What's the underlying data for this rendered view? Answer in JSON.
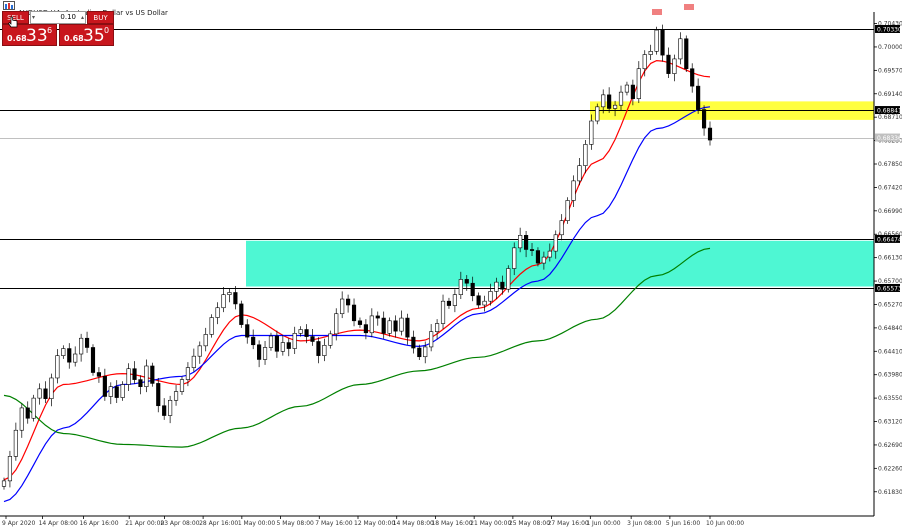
{
  "window": {
    "title": "AUDUSD,H4: Australian Dollar vs US Dollar",
    "icon": "chart-window-icon"
  },
  "trade_panel": {
    "sell_label": "SELL",
    "buy_label": "BUY",
    "volume": "0.10",
    "sell_price_small": "0.68",
    "sell_price_big": "33",
    "sell_price_sup": "6",
    "buy_price_small": "0.68",
    "buy_price_big": "35",
    "buy_price_sup": "0",
    "color": "#c8161d"
  },
  "chart_data": {
    "type": "candlestick",
    "symbol": "AUDUSD",
    "timeframe": "H4",
    "ylim": [
      0.6155,
      0.7055
    ],
    "y_ticks": [
      "0.70430",
      "0.70000",
      "0.69570",
      "0.69140",
      "0.68710",
      "0.68280",
      "0.67850",
      "0.67420",
      "0.66990",
      "0.66560",
      "0.66130",
      "0.65700",
      "0.65270",
      "0.64840",
      "0.64410",
      "0.63980",
      "0.63550",
      "0.63120",
      "0.62690",
      "0.62260",
      "0.61830"
    ],
    "x_ticks": [
      "9 Apr 2020",
      "14 Apr 08:00",
      "16 Apr 16:00",
      "21 Apr 00:00",
      "23 Apr 08:00",
      "28 Apr 16:00",
      "1 May 00:00",
      "5 May 08:00",
      "7 May 16:00",
      "12 May 00:00",
      "14 May 08:00",
      "18 May 16:00",
      "21 May 00:00",
      "25 May 08:00",
      "27 May 16:00",
      "1 Jun 00:00",
      "3 Jun 08:00",
      "5 Jun 16:00",
      "10 Jun 00:00"
    ],
    "x_tick_positions": [
      0.0,
      0.052,
      0.11,
      0.175,
      0.225,
      0.28,
      0.335,
      0.39,
      0.445,
      0.5,
      0.555,
      0.61,
      0.665,
      0.72,
      0.775,
      0.83,
      0.888,
      0.943,
      1.0
    ],
    "price_labels": [
      {
        "value": 0.7033,
        "text": "0.70330",
        "color": "#000000"
      },
      {
        "value": 0.68841,
        "text": "0.68841",
        "color": "#000000"
      },
      {
        "value": 0.68336,
        "text": "0.68336",
        "color": "#c0c0c0"
      },
      {
        "value": 0.66474,
        "text": "0.66474",
        "color": "#000000"
      },
      {
        "value": 0.65573,
        "text": "0.65573",
        "color": "#000000"
      }
    ],
    "horizontal_lines": [
      0.7033,
      0.68841,
      0.66474,
      0.65573
    ],
    "bid_line": 0.68336,
    "zones": [
      {
        "name": "resistance-zone",
        "from": 0.6866,
        "to": 0.69,
        "color": "#ffff00",
        "opacity": 0.75
      },
      {
        "name": "support-zone",
        "from": 0.656,
        "to": 0.6644,
        "color": "#22f5c8",
        "opacity": 0.8
      }
    ],
    "candle_close": [
      0.6203,
      0.6248,
      0.6296,
      0.6337,
      0.6318,
      0.6355,
      0.6372,
      0.6354,
      0.6392,
      0.6433,
      0.6446,
      0.6421,
      0.6436,
      0.6465,
      0.6448,
      0.6402,
      0.6395,
      0.6358,
      0.6376,
      0.6356,
      0.638,
      0.6409,
      0.6389,
      0.6376,
      0.6414,
      0.6382,
      0.6341,
      0.6323,
      0.6351,
      0.6367,
      0.6389,
      0.6411,
      0.6432,
      0.6451,
      0.6472,
      0.6503,
      0.6521,
      0.6545,
      0.6549,
      0.6528,
      0.649,
      0.6467,
      0.6453,
      0.6426,
      0.6448,
      0.6469,
      0.6441,
      0.6457,
      0.6446,
      0.6474,
      0.6481,
      0.6468,
      0.6459,
      0.6433,
      0.6452,
      0.6473,
      0.651,
      0.6537,
      0.6526,
      0.6497,
      0.649,
      0.6475,
      0.6506,
      0.6502,
      0.6474,
      0.6497,
      0.6478,
      0.6502,
      0.6467,
      0.6447,
      0.6431,
      0.6449,
      0.6477,
      0.6492,
      0.6533,
      0.6525,
      0.6545,
      0.6573,
      0.6566,
      0.6543,
      0.6526,
      0.6533,
      0.6551,
      0.6568,
      0.6555,
      0.6593,
      0.6631,
      0.6654,
      0.6628,
      0.6626,
      0.6603,
      0.6614,
      0.6625,
      0.6655,
      0.6681,
      0.6718,
      0.6754,
      0.6782,
      0.6821,
      0.6864,
      0.689,
      0.6912,
      0.6887,
      0.6893,
      0.6917,
      0.693,
      0.6905,
      0.696,
      0.6986,
      0.6992,
      0.7031,
      0.6985,
      0.6951,
      0.6978,
      0.7015,
      0.696,
      0.6928,
      0.6885,
      0.6851,
      0.6829
    ],
    "x_count": 120,
    "moving_averages": [
      {
        "name": "MA-fast",
        "color": "#ff0000",
        "x": [
          0,
          10,
          20,
          30,
          40,
          50,
          60,
          70,
          80,
          90,
          100,
          110,
          119
        ],
        "values": [
          0.6205,
          0.638,
          0.64,
          0.638,
          0.6508,
          0.646,
          0.648,
          0.646,
          0.652,
          0.66,
          0.679,
          0.6975,
          0.6945
        ]
      },
      {
        "name": "MA-mid",
        "color": "#0000ff",
        "x": [
          0,
          10,
          20,
          30,
          40,
          50,
          60,
          70,
          80,
          90,
          100,
          110,
          119
        ],
        "values": [
          0.6165,
          0.63,
          0.638,
          0.6395,
          0.647,
          0.647,
          0.647,
          0.645,
          0.651,
          0.657,
          0.669,
          0.685,
          0.689
        ]
      },
      {
        "name": "MA-slow",
        "color": "#008000",
        "x": [
          0,
          10,
          20,
          30,
          40,
          50,
          60,
          70,
          80,
          90,
          100,
          110,
          119
        ],
        "values": [
          0.636,
          0.629,
          0.627,
          0.6265,
          0.63,
          0.634,
          0.638,
          0.6405,
          0.643,
          0.646,
          0.65,
          0.658,
          0.663
        ]
      }
    ],
    "grid": false,
    "legend": "none"
  }
}
